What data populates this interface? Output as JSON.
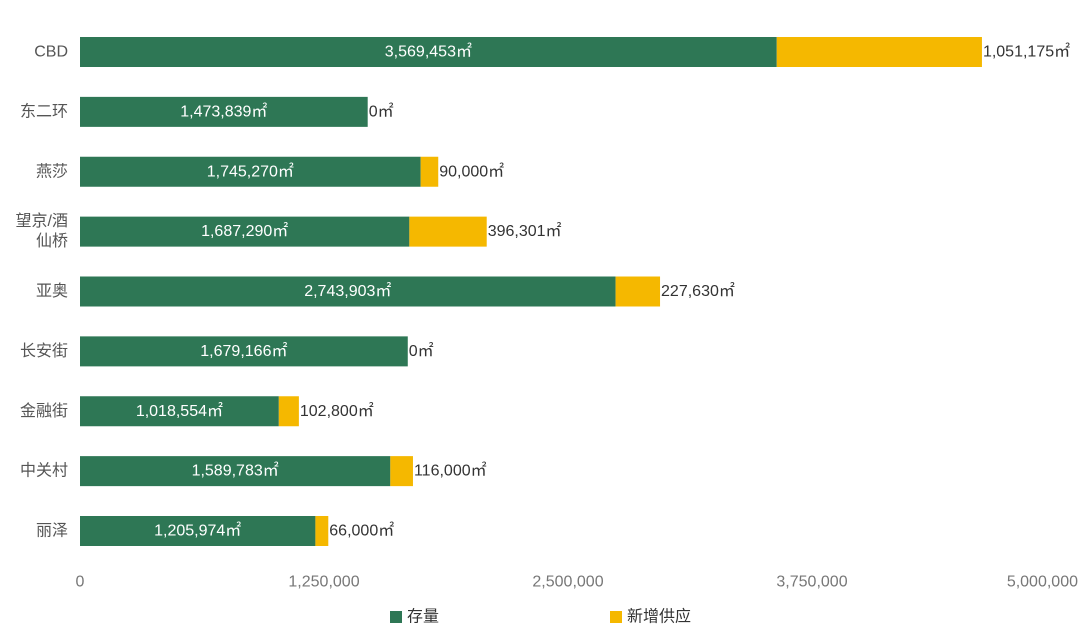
{
  "chart_data": {
    "type": "bar",
    "orientation": "horizontal",
    "stacked": true,
    "categories": [
      "CBD",
      "东二环",
      "燕莎",
      "望京/酒仙桥",
      "亚奥",
      "长安街",
      "金融街",
      "中关村",
      "丽泽"
    ],
    "category_display": [
      [
        "CBD"
      ],
      [
        "东二环"
      ],
      [
        "燕莎"
      ],
      [
        "望京/酒",
        "仙桥"
      ],
      [
        "亚奥"
      ],
      [
        "长安街"
      ],
      [
        "金融街"
      ],
      [
        "中关村"
      ],
      [
        "丽泽"
      ]
    ],
    "series": [
      {
        "name": "存量",
        "color": "#2e7755",
        "values": [
          3569453,
          1473839,
          1745270,
          1687290,
          2743903,
          1679166,
          1018554,
          1589783,
          1205974
        ],
        "labels": [
          "3,569,453㎡",
          "1,473,839㎡",
          "1,745,270㎡",
          "1,687,290㎡",
          "2,743,903㎡",
          "1,679,166㎡",
          "1,018,554㎡",
          "1,589,783㎡",
          "1,205,974㎡"
        ]
      },
      {
        "name": "新增供应",
        "color": "#f5b800",
        "values": [
          1051175,
          0,
          90000,
          396301,
          227630,
          0,
          102800,
          116000,
          66000
        ],
        "labels": [
          "1,051,175㎡",
          "0㎡",
          "90,000㎡",
          "396,301㎡",
          "227,630㎡",
          "0㎡",
          "102,800㎡",
          "116,000㎡",
          "66,000㎡"
        ]
      }
    ],
    "xlim": [
      0,
      5000000
    ],
    "xticks": [
      0,
      1250000,
      2500000,
      3750000,
      5000000
    ],
    "xtick_labels": [
      "0",
      "1,250,000",
      "2,500,000",
      "3,750,000",
      "5,000,000"
    ],
    "grid": false,
    "legend_position": "bottom"
  }
}
